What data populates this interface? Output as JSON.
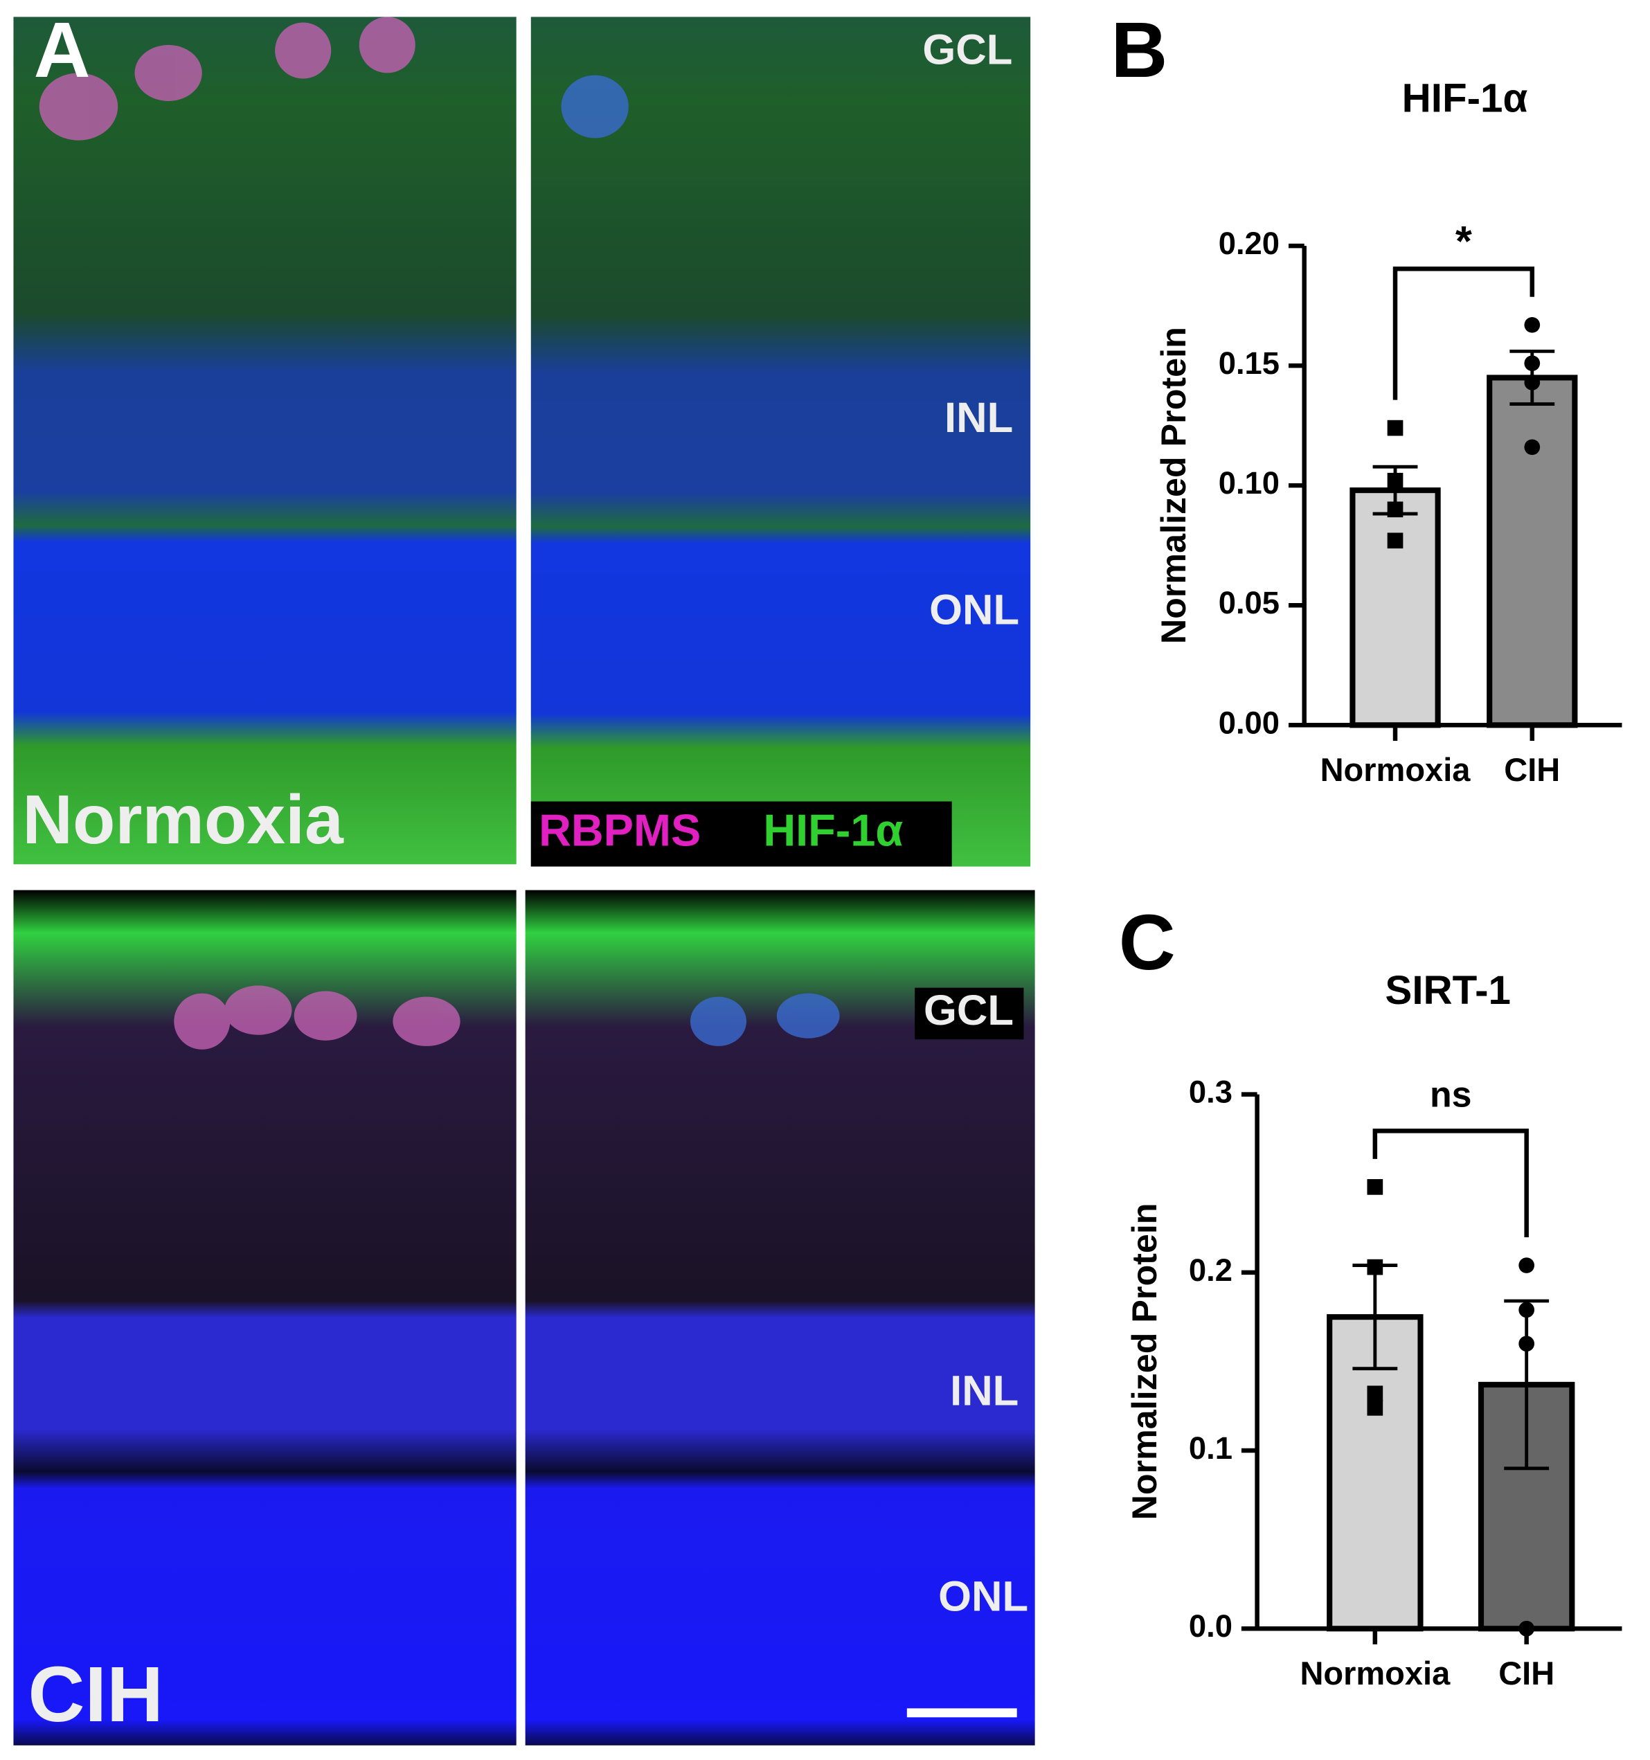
{
  "panel_a": {
    "label": "A",
    "conditions": [
      "Normoxia",
      "CIH"
    ],
    "layers": [
      "GCL",
      "INL",
      "ONL"
    ],
    "stains": [
      "RBPMS",
      "HIF-1α"
    ]
  },
  "chart_data": [
    {
      "type": "bar",
      "panel_label": "B",
      "title": "HIF-1α",
      "y_label": "Normalized Protein",
      "categories": [
        "Normoxia",
        "CIH"
      ],
      "values": [
        0.098,
        0.145
      ],
      "errors": [
        0.0098,
        0.011
      ],
      "points": [
        [
          0.124,
          0.102,
          0.09,
          0.077
        ],
        [
          0.167,
          0.151,
          0.143,
          0.116
        ]
      ],
      "colors": [
        "#d3d3d3",
        "#8a8a8a"
      ],
      "markers": [
        "square",
        "circle"
      ],
      "significance": "*",
      "ylim": [
        0,
        0.2
      ],
      "yticks": [
        {
          "value": 0,
          "label": "0.00"
        },
        0.05,
        {
          "value": 0.1,
          "label": "0.10"
        },
        0.15,
        {
          "value": 0.2,
          "label": "0.20"
        }
      ]
    },
    {
      "type": "bar",
      "panel_label": "C",
      "title": "SIRT-1",
      "y_label": "Normalized Protein",
      "categories": [
        "Normoxia",
        "CIH"
      ],
      "values": [
        0.175,
        0.137
      ],
      "errors": [
        0.029,
        0.047
      ],
      "points": [
        [
          0.248,
          0.203,
          0.132,
          0.124
        ],
        [
          0.204,
          0.179,
          0.16,
          0.0
        ]
      ],
      "colors": [
        "#d3d3d3",
        "#666666"
      ],
      "markers": [
        "square",
        "circle"
      ],
      "significance": "ns",
      "ylim": [
        0,
        0.3
      ],
      "yticks": [
        {
          "value": 0,
          "label": "0.0"
        },
        {
          "value": 0.1,
          "label": "0.1"
        },
        {
          "value": 0.2,
          "label": "0.2"
        },
        {
          "value": 0.3,
          "label": "0.3"
        }
      ]
    }
  ]
}
